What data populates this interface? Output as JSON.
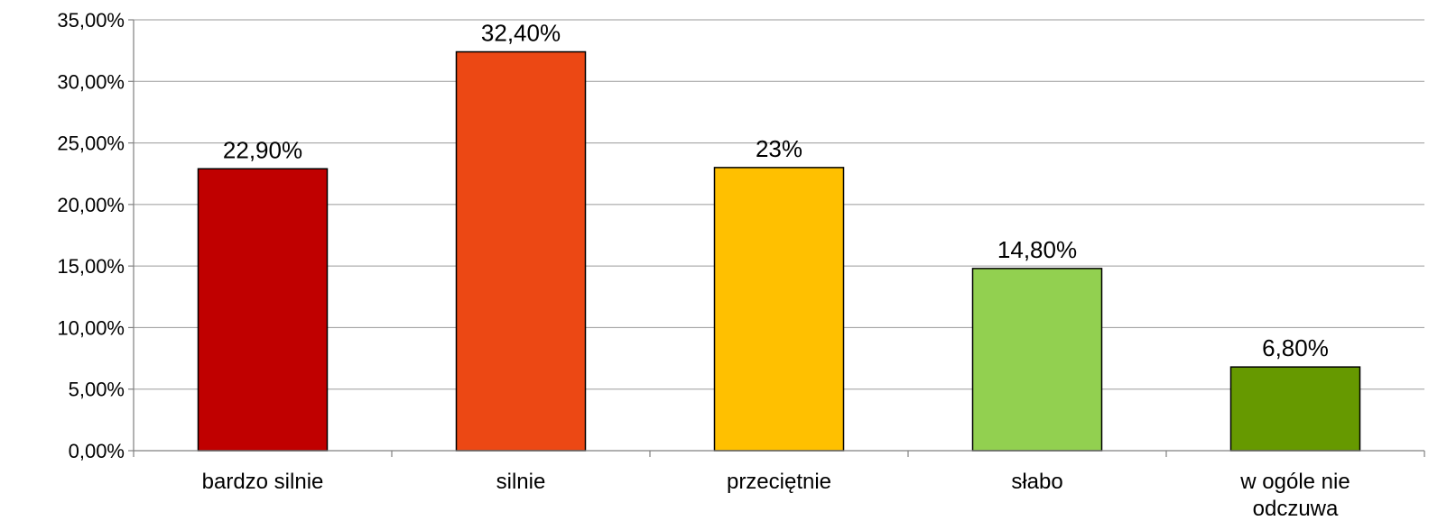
{
  "chart_data": {
    "type": "bar",
    "categories": [
      "bardzo silnie",
      "silnie",
      "przeciętnie",
      "słabo",
      "w ogóle nie odczuwa"
    ],
    "category_label_lines": [
      [
        "bardzo silnie"
      ],
      [
        "silnie"
      ],
      [
        "przeciętnie"
      ],
      [
        "słabo"
      ],
      [
        "w ogóle nie",
        "odczuwa"
      ]
    ],
    "values": [
      22.9,
      32.4,
      23.0,
      14.8,
      6.8
    ],
    "data_labels": [
      "22,90%",
      "32,40%",
      "23%",
      "14,80%",
      "6,80%"
    ],
    "colors": [
      "#C00000",
      "#EC4814",
      "#FFC000",
      "#92D050",
      "#669900"
    ],
    "ylim": [
      0,
      35
    ],
    "yticks": [
      0,
      5,
      10,
      15,
      20,
      25,
      30,
      35
    ],
    "ytick_labels": [
      "0,00%",
      "5,00%",
      "10,00%",
      "15,00%",
      "20,00%",
      "25,00%",
      "30,00%",
      "35,00%"
    ],
    "grid": true,
    "title": "",
    "xlabel": "",
    "ylabel": ""
  }
}
